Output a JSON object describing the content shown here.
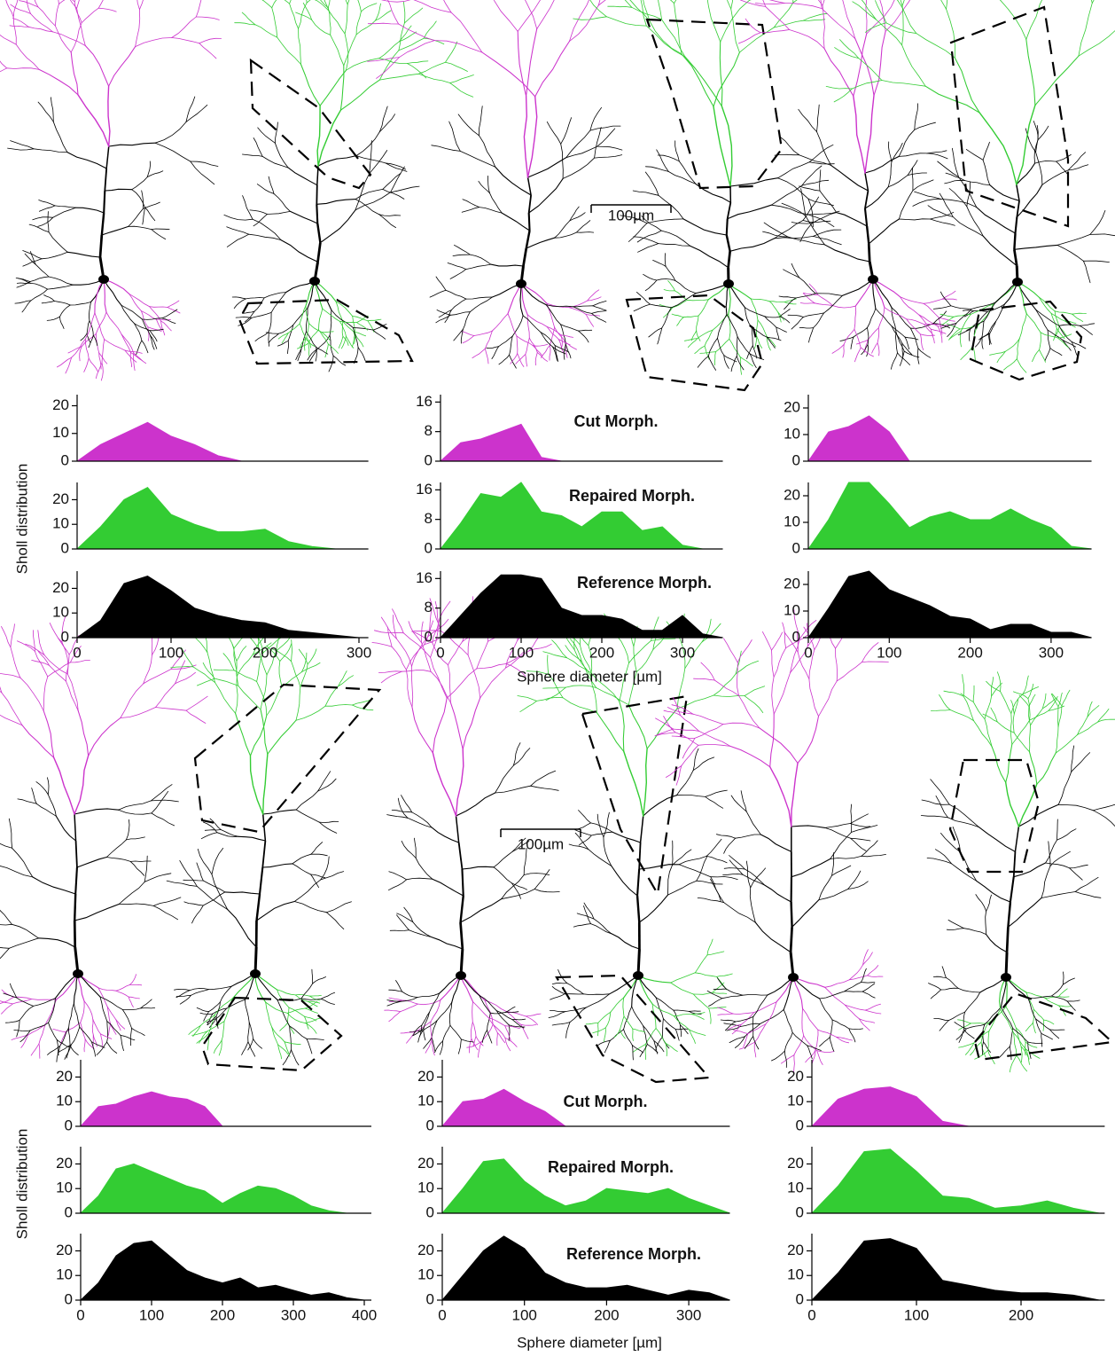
{
  "chart_data": [
    {
      "type": "area",
      "color": "#cc33cc",
      "x": [
        0,
        25,
        50,
        75,
        100,
        125,
        150,
        175
      ],
      "values": [
        0,
        6,
        10,
        14,
        9,
        6,
        2,
        0
      ],
      "xlim": [
        0,
        310
      ],
      "ylim": [
        0,
        24
      ],
      "yticks": [
        0,
        10,
        20
      ]
    },
    {
      "type": "area",
      "color": "#33cc33",
      "x": [
        0,
        25,
        50,
        75,
        100,
        125,
        150,
        175,
        200,
        225,
        250,
        275
      ],
      "values": [
        0,
        9,
        20,
        25,
        14,
        10,
        7,
        7,
        8,
        3,
        1,
        0
      ],
      "xlim": [
        0,
        310
      ],
      "ylim": [
        0,
        27
      ],
      "yticks": [
        0,
        10,
        20
      ]
    },
    {
      "type": "area",
      "color": "#000000",
      "x": [
        0,
        25,
        50,
        75,
        100,
        125,
        150,
        175,
        200,
        225,
        250,
        275,
        300
      ],
      "values": [
        0,
        7,
        22,
        25,
        19,
        12,
        9,
        7,
        6,
        3,
        2,
        1,
        0
      ],
      "xlim": [
        0,
        310
      ],
      "ylim": [
        0,
        27
      ],
      "yticks": [
        0,
        10,
        20
      ],
      "xticks": [
        0,
        100,
        200,
        300
      ]
    },
    {
      "type": "area",
      "color": "#cc33cc",
      "x": [
        0,
        25,
        50,
        75,
        100,
        125,
        150
      ],
      "values": [
        0,
        5,
        6,
        8,
        10,
        1,
        0
      ],
      "xlim": [
        0,
        350
      ],
      "ylim": [
        0,
        18
      ],
      "yticks": [
        0,
        8,
        16
      ],
      "annotation": "Cut Morph."
    },
    {
      "type": "area",
      "color": "#33cc33",
      "x": [
        0,
        25,
        50,
        75,
        100,
        125,
        150,
        175,
        200,
        225,
        250,
        275,
        300,
        325
      ],
      "values": [
        0,
        7,
        15,
        14,
        18,
        10,
        9,
        6,
        10,
        10,
        5,
        6,
        1,
        0
      ],
      "xlim": [
        0,
        350
      ],
      "ylim": [
        0,
        18
      ],
      "yticks": [
        0,
        8,
        16
      ],
      "annotation": "Repaired Morph."
    },
    {
      "type": "area",
      "color": "#000000",
      "x": [
        0,
        25,
        50,
        75,
        100,
        125,
        150,
        175,
        200,
        225,
        250,
        275,
        300,
        325,
        350
      ],
      "values": [
        0,
        6,
        12,
        17,
        17,
        16,
        8,
        6,
        6,
        5,
        2,
        2,
        6,
        1,
        0
      ],
      "xlim": [
        0,
        350
      ],
      "ylim": [
        0,
        18
      ],
      "yticks": [
        0,
        8,
        16
      ],
      "xticks": [
        0,
        100,
        200,
        300
      ],
      "annotation": "Reference Morph."
    },
    {
      "type": "area",
      "color": "#cc33cc",
      "x": [
        0,
        25,
        50,
        75,
        100,
        125
      ],
      "values": [
        0,
        11,
        13,
        17,
        11,
        0
      ],
      "xlim": [
        0,
        350
      ],
      "ylim": [
        0,
        25
      ],
      "yticks": [
        0,
        10,
        20
      ]
    },
    {
      "type": "area",
      "color": "#33cc33",
      "x": [
        0,
        25,
        50,
        75,
        100,
        125,
        150,
        175,
        200,
        225,
        250,
        275,
        300,
        325,
        350
      ],
      "values": [
        0,
        11,
        25,
        25,
        17,
        8,
        12,
        14,
        11,
        11,
        15,
        11,
        8,
        1,
        0
      ],
      "xlim": [
        0,
        350
      ],
      "ylim": [
        0,
        25
      ],
      "yticks": [
        0,
        10,
        20
      ]
    },
    {
      "type": "area",
      "color": "#000000",
      "x": [
        0,
        25,
        50,
        75,
        100,
        125,
        150,
        175,
        200,
        225,
        250,
        275,
        300,
        325,
        350
      ],
      "values": [
        0,
        11,
        23,
        25,
        18,
        15,
        12,
        8,
        7,
        3,
        5,
        5,
        2,
        2,
        0
      ],
      "xlim": [
        0,
        350
      ],
      "ylim": [
        0,
        25
      ],
      "yticks": [
        0,
        10,
        20
      ],
      "xticks": [
        0,
        100,
        200,
        300
      ]
    },
    {
      "type": "area",
      "color": "#cc33cc",
      "x": [
        0,
        25,
        50,
        75,
        100,
        125,
        150,
        175,
        200
      ],
      "values": [
        0,
        8,
        9,
        12,
        14,
        12,
        11,
        8,
        0
      ],
      "xlim": [
        0,
        410
      ],
      "ylim": [
        0,
        27
      ],
      "yticks": [
        0,
        10,
        20
      ]
    },
    {
      "type": "area",
      "color": "#33cc33",
      "x": [
        0,
        25,
        50,
        75,
        100,
        125,
        150,
        175,
        200,
        225,
        250,
        275,
        300,
        325,
        350,
        375
      ],
      "values": [
        0,
        7,
        18,
        20,
        17,
        14,
        11,
        9,
        4,
        8,
        11,
        10,
        7,
        3,
        1,
        0
      ],
      "xlim": [
        0,
        410
      ],
      "ylim": [
        0,
        27
      ],
      "yticks": [
        0,
        10,
        20
      ]
    },
    {
      "type": "area",
      "color": "#000000",
      "x": [
        0,
        25,
        50,
        75,
        100,
        125,
        150,
        175,
        200,
        225,
        250,
        275,
        300,
        325,
        350,
        375,
        400
      ],
      "values": [
        0,
        7,
        18,
        23,
        24,
        18,
        12,
        9,
        7,
        9,
        5,
        6,
        4,
        2,
        3,
        1,
        0
      ],
      "xlim": [
        0,
        410
      ],
      "ylim": [
        0,
        27
      ],
      "yticks": [
        0,
        10,
        20
      ],
      "xticks": [
        0,
        100,
        200,
        300,
        400
      ]
    },
    {
      "type": "area",
      "color": "#cc33cc",
      "x": [
        0,
        25,
        50,
        75,
        100,
        125,
        150
      ],
      "values": [
        0,
        10,
        11,
        15,
        10,
        6,
        0
      ],
      "xlim": [
        0,
        350
      ],
      "ylim": [
        0,
        27
      ],
      "yticks": [
        0,
        10,
        20
      ],
      "annotation": "Cut Morph."
    },
    {
      "type": "area",
      "color": "#33cc33",
      "x": [
        0,
        25,
        50,
        75,
        100,
        125,
        150,
        175,
        200,
        225,
        250,
        275,
        300,
        325,
        350
      ],
      "values": [
        0,
        10,
        21,
        22,
        13,
        7,
        3,
        5,
        10,
        9,
        8,
        10,
        6,
        3,
        0
      ],
      "xlim": [
        0,
        350
      ],
      "ylim": [
        0,
        27
      ],
      "yticks": [
        0,
        10,
        20
      ],
      "annotation": "Repaired Morph."
    },
    {
      "type": "area",
      "color": "#000000",
      "x": [
        0,
        25,
        50,
        75,
        100,
        125,
        150,
        175,
        200,
        225,
        250,
        275,
        300,
        325,
        350
      ],
      "values": [
        0,
        10,
        20,
        26,
        21,
        11,
        7,
        5,
        5,
        6,
        4,
        2,
        4,
        3,
        0
      ],
      "xlim": [
        0,
        350
      ],
      "ylim": [
        0,
        27
      ],
      "yticks": [
        0,
        10,
        20
      ],
      "xticks": [
        0,
        100,
        200,
        300
      ],
      "annotation": "Reference Morph."
    },
    {
      "type": "area",
      "color": "#cc33cc",
      "x": [
        0,
        25,
        50,
        75,
        100,
        125,
        150
      ],
      "values": [
        0,
        11,
        15,
        16,
        12,
        2,
        0
      ],
      "xlim": [
        0,
        280
      ],
      "ylim": [
        0,
        27
      ],
      "yticks": [
        0,
        10,
        20
      ]
    },
    {
      "type": "area",
      "color": "#33cc33",
      "x": [
        0,
        25,
        50,
        75,
        100,
        125,
        150,
        175,
        200,
        225,
        250,
        275
      ],
      "values": [
        0,
        11,
        25,
        26,
        17,
        7,
        6,
        2,
        3,
        5,
        2,
        0
      ],
      "xlim": [
        0,
        280
      ],
      "ylim": [
        0,
        27
      ],
      "yticks": [
        0,
        10,
        20
      ]
    },
    {
      "type": "area",
      "color": "#000000",
      "x": [
        0,
        25,
        50,
        75,
        100,
        125,
        150,
        175,
        200,
        225,
        250,
        275
      ],
      "values": [
        0,
        11,
        24,
        25,
        21,
        8,
        6,
        4,
        3,
        3,
        2,
        0
      ],
      "xlim": [
        0,
        280
      ],
      "ylim": [
        0,
        27
      ],
      "yticks": [
        0,
        10,
        20
      ],
      "xticks": [
        0,
        100,
        200
      ]
    }
  ],
  "figure": {
    "scale_bars": [
      "100µm",
      "100µm"
    ],
    "y_axis_labels": [
      "Sholl distribution",
      "Sholl distribution"
    ],
    "x_axis_labels": [
      "Sphere diameter [µm]",
      "Sphere diameter [µm]"
    ]
  }
}
